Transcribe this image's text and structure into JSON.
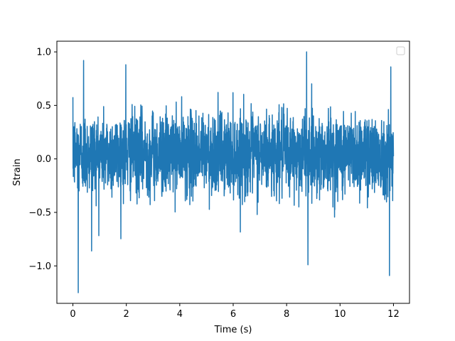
{
  "chart_data": {
    "type": "line",
    "title": "",
    "xlabel": "Time (s)",
    "ylabel": "Strain",
    "xlim": [
      -0.6,
      12.6
    ],
    "ylim": [
      -1.35,
      1.1
    ],
    "x_ticks": [
      0,
      2,
      4,
      6,
      8,
      10,
      12
    ],
    "x_tick_labels": [
      "0",
      "2",
      "4",
      "6",
      "8",
      "10",
      "12"
    ],
    "y_ticks": [
      -1.0,
      -0.5,
      0.0,
      0.5,
      1.0
    ],
    "y_tick_labels": [
      "−1.0",
      "−0.5",
      "0.0",
      "0.5",
      "1.0"
    ],
    "grid": false,
    "legend": "upper-right (empty)",
    "series": [
      {
        "color": "#1f77b4",
        "x_range": [
          0,
          12
        ],
        "num_points": 2400,
        "typical_band": [
          -0.45,
          0.55
        ],
        "extremes": [
          {
            "x": 0.2,
            "y": -1.25
          },
          {
            "x": 0.4,
            "y": 0.92
          },
          {
            "x": 8.75,
            "y": 1.0
          },
          {
            "x": 11.85,
            "y": -1.09
          },
          {
            "x": 11.9,
            "y": 0.86
          },
          {
            "x": 8.8,
            "y": -0.99
          },
          {
            "x": 1.98,
            "y": 0.88
          },
          {
            "x": 0.7,
            "y": -0.86
          }
        ]
      }
    ]
  }
}
